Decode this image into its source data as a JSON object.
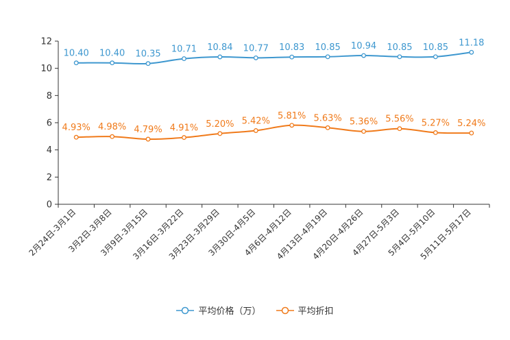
{
  "chart_data": {
    "type": "line",
    "title": "",
    "xlabel": "",
    "ylabel": "",
    "ylim": [
      0,
      12
    ],
    "yticks": [
      0,
      2,
      4,
      6,
      8,
      10,
      12
    ],
    "categories": [
      "2月24日-3月1日",
      "3月2日-3月8日",
      "3月9日-3月15日",
      "3月16日-3月22日",
      "3月23日-3月29日",
      "3月30日-4月5日",
      "4月6日-4月12日",
      "4月13日-4月19日",
      "4月20日-4月26日",
      "4月27日-5月3日",
      "5月4日-5月10日",
      "5月11日-5月17日"
    ],
    "series": [
      {
        "name": "平均价格（万）",
        "color": "#3d97cf",
        "values": [
          10.4,
          10.4,
          10.35,
          10.71,
          10.84,
          10.77,
          10.83,
          10.85,
          10.94,
          10.85,
          10.85,
          11.18
        ],
        "labels": [
          "10.40",
          "10.40",
          "10.35",
          "10.71",
          "10.84",
          "10.77",
          "10.83",
          "10.85",
          "10.94",
          "10.85",
          "10.85",
          "11.18"
        ]
      },
      {
        "name": "平均折扣",
        "color": "#f07a1a",
        "values": [
          4.93,
          4.98,
          4.79,
          4.91,
          5.2,
          5.42,
          5.81,
          5.63,
          5.36,
          5.56,
          5.27,
          5.24
        ],
        "labels": [
          "4.93%",
          "4.98%",
          "4.79%",
          "4.91%",
          "5.20%",
          "5.42%",
          "5.81%",
          "5.63%",
          "5.36%",
          "5.56%",
          "5.27%",
          "5.24%"
        ]
      }
    ],
    "legend_position": "bottom-center",
    "grid": false
  }
}
